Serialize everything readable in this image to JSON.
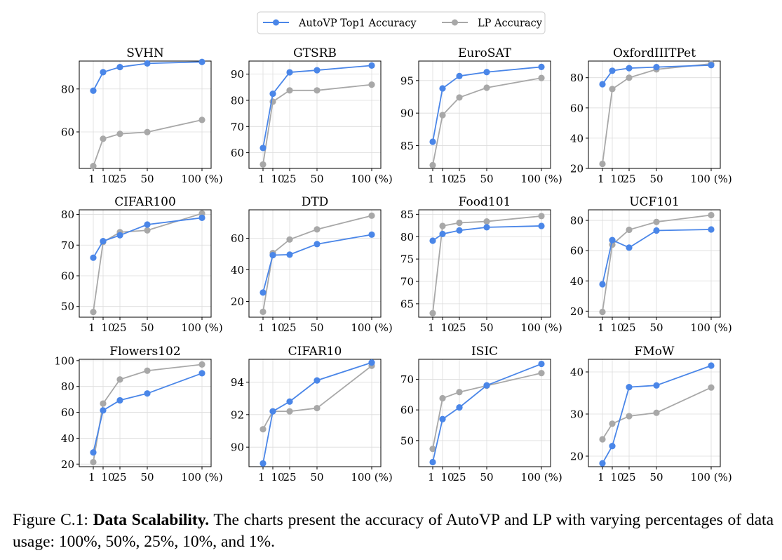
{
  "legend": {
    "items": [
      {
        "label": "AutoVP Top1 Accuracy",
        "color": "#4a86e8"
      },
      {
        "label": "LP Accuracy",
        "color": "#a8a8a8"
      }
    ],
    "placement": "top-center"
  },
  "colors": {
    "autovp": "#4a86e8",
    "lp": "#a8a8a8",
    "grid": "#dcdcdc",
    "axis": "#000000"
  },
  "caption": {
    "label": "Figure C.1:",
    "bold": "Data Scalability.",
    "text": "The charts present the accuracy of AutoVP and LP with varying percentages of data usage: 100%, 50%, 25%, 10%, and 1%."
  },
  "chart_data": [
    {
      "type": "line",
      "title": "SVHN",
      "x": [
        1,
        10,
        25,
        50,
        100
      ],
      "x_tick_labels": [
        "1",
        "10",
        "25",
        "50",
        "100 (%)"
      ],
      "ylim": [
        43,
        93
      ],
      "y_ticks": [
        60,
        80
      ],
      "grid": true,
      "series": [
        {
          "name": "AutoVP Top1 Accuracy",
          "values": [
            79.2,
            87.8,
            90.2,
            91.9,
            92.6
          ]
        },
        {
          "name": "LP Accuracy",
          "values": [
            44.1,
            56.8,
            59.1,
            59.9,
            65.6
          ]
        }
      ]
    },
    {
      "type": "line",
      "title": "GTSRB",
      "x": [
        1,
        10,
        25,
        50,
        100
      ],
      "x_tick_labels": [
        "1",
        "10",
        "25",
        "50",
        "100 (%)"
      ],
      "ylim": [
        54,
        95
      ],
      "y_ticks": [
        60,
        70,
        80,
        90
      ],
      "grid": true,
      "series": [
        {
          "name": "AutoVP Top1 Accuracy",
          "values": [
            61.8,
            82.5,
            90.7,
            91.5,
            93.3
          ]
        },
        {
          "name": "LP Accuracy",
          "values": [
            55.5,
            79.5,
            83.8,
            83.8,
            86.0
          ]
        }
      ]
    },
    {
      "type": "line",
      "title": "EuroSAT",
      "x": [
        1,
        10,
        25,
        50,
        100
      ],
      "x_tick_labels": [
        "1",
        "10",
        "25",
        "50",
        "100 (%)"
      ],
      "ylim": [
        81.5,
        98
      ],
      "y_ticks": [
        85,
        90,
        95
      ],
      "grid": true,
      "series": [
        {
          "name": "AutoVP Top1 Accuracy",
          "values": [
            85.6,
            93.8,
            95.7,
            96.3,
            97.1
          ]
        },
        {
          "name": "LP Accuracy",
          "values": [
            82.0,
            89.7,
            92.4,
            93.9,
            95.4
          ]
        }
      ]
    },
    {
      "type": "line",
      "title": "OxfordIIITPet",
      "x": [
        1,
        10,
        25,
        50,
        100
      ],
      "x_tick_labels": [
        "1",
        "10",
        "25",
        "50",
        "100 (%)"
      ],
      "ylim": [
        20,
        91
      ],
      "y_ticks": [
        20,
        40,
        60,
        80
      ],
      "grid": true,
      "series": [
        {
          "name": "AutoVP Top1 Accuracy",
          "values": [
            75.7,
            84.6,
            86.3,
            87.0,
            88.3
          ]
        },
        {
          "name": "LP Accuracy",
          "values": [
            23.0,
            72.5,
            80.0,
            85.5,
            89.2
          ]
        }
      ]
    },
    {
      "type": "line",
      "title": "CIFAR100",
      "x": [
        1,
        10,
        25,
        50,
        100
      ],
      "x_tick_labels": [
        "1",
        "10",
        "25",
        "50",
        "100 (%)"
      ],
      "ylim": [
        46.5,
        81.5
      ],
      "y_ticks": [
        50,
        60,
        70,
        80
      ],
      "grid": true,
      "series": [
        {
          "name": "AutoVP Top1 Accuracy",
          "values": [
            65.9,
            71.3,
            73.2,
            76.7,
            78.9
          ]
        },
        {
          "name": "LP Accuracy",
          "values": [
            48.2,
            71.0,
            74.2,
            74.8,
            80.3
          ]
        }
      ]
    },
    {
      "type": "line",
      "title": "DTD",
      "x": [
        1,
        10,
        25,
        50,
        100
      ],
      "x_tick_labels": [
        "1",
        "10",
        "25",
        "50",
        "100 (%)"
      ],
      "ylim": [
        10,
        78
      ],
      "y_ticks": [
        20,
        40,
        60
      ],
      "grid": true,
      "series": [
        {
          "name": "AutoVP Top1 Accuracy",
          "values": [
            25.6,
            49.3,
            49.6,
            56.3,
            62.3
          ]
        },
        {
          "name": "LP Accuracy",
          "values": [
            13.4,
            50.6,
            59.2,
            65.6,
            74.3
          ]
        }
      ]
    },
    {
      "type": "line",
      "title": "Food101",
      "x": [
        1,
        10,
        25,
        50,
        100
      ],
      "x_tick_labels": [
        "1",
        "10",
        "25",
        "50",
        "100 (%)"
      ],
      "ylim": [
        62,
        86
      ],
      "y_ticks": [
        65,
        70,
        75,
        80,
        85
      ],
      "grid": true,
      "series": [
        {
          "name": "AutoVP Top1 Accuracy",
          "values": [
            79.1,
            80.6,
            81.4,
            82.1,
            82.4
          ]
        },
        {
          "name": "LP Accuracy",
          "values": [
            62.9,
            82.4,
            83.1,
            83.4,
            84.6
          ]
        }
      ]
    },
    {
      "type": "line",
      "title": "UCF101",
      "x": [
        1,
        10,
        25,
        50,
        100
      ],
      "x_tick_labels": [
        "1",
        "10",
        "25",
        "50",
        "100 (%)"
      ],
      "ylim": [
        16,
        87
      ],
      "y_ticks": [
        20,
        40,
        60,
        80
      ],
      "grid": true,
      "series": [
        {
          "name": "AutoVP Top1 Accuracy",
          "values": [
            37.8,
            67.0,
            62.0,
            73.3,
            74.0
          ]
        },
        {
          "name": "LP Accuracy",
          "values": [
            19.5,
            64.0,
            73.8,
            79.0,
            83.5
          ]
        }
      ]
    },
    {
      "type": "line",
      "title": "Flowers102",
      "x": [
        1,
        10,
        25,
        50,
        100
      ],
      "x_tick_labels": [
        "1",
        "10",
        "25",
        "50",
        "100 (%)"
      ],
      "ylim": [
        18,
        101
      ],
      "y_ticks": [
        20,
        40,
        60,
        80,
        100
      ],
      "grid": true,
      "series": [
        {
          "name": "AutoVP Top1 Accuracy",
          "values": [
            29.0,
            61.5,
            69.3,
            74.6,
            90.2
          ]
        },
        {
          "name": "LP Accuracy",
          "values": [
            21.5,
            66.8,
            85.4,
            92.2,
            97.0
          ]
        }
      ]
    },
    {
      "type": "line",
      "title": "CIFAR10",
      "x": [
        1,
        10,
        25,
        50,
        100
      ],
      "x_tick_labels": [
        "1",
        "10",
        "25",
        "50",
        "100 (%)"
      ],
      "ylim": [
        88.8,
        95.4
      ],
      "y_ticks": [
        90,
        92,
        94
      ],
      "grid": true,
      "series": [
        {
          "name": "AutoVP Top1 Accuracy",
          "values": [
            89.0,
            92.2,
            92.8,
            94.1,
            95.2
          ]
        },
        {
          "name": "LP Accuracy",
          "values": [
            91.1,
            92.2,
            92.2,
            92.4,
            95.0
          ]
        }
      ]
    },
    {
      "type": "line",
      "title": "ISIC",
      "x": [
        1,
        10,
        25,
        50,
        100
      ],
      "x_tick_labels": [
        "1",
        "10",
        "25",
        "50",
        "100 (%)"
      ],
      "ylim": [
        41.5,
        76.5
      ],
      "y_ticks": [
        50,
        60,
        70
      ],
      "grid": true,
      "series": [
        {
          "name": "AutoVP Top1 Accuracy",
          "values": [
            43.0,
            57.0,
            60.8,
            68.0,
            75.0
          ]
        },
        {
          "name": "LP Accuracy",
          "values": [
            47.3,
            63.8,
            65.8,
            67.9,
            72.0
          ]
        }
      ]
    },
    {
      "type": "line",
      "title": "FMoW",
      "x": [
        1,
        10,
        25,
        50,
        100
      ],
      "x_tick_labels": [
        "1",
        "10",
        "25",
        "50",
        "100 (%)"
      ],
      "ylim": [
        17.5,
        43
      ],
      "y_ticks": [
        20,
        30,
        40
      ],
      "grid": true,
      "series": [
        {
          "name": "AutoVP Top1 Accuracy",
          "values": [
            18.3,
            22.4,
            36.4,
            36.8,
            41.5
          ]
        },
        {
          "name": "LP Accuracy",
          "values": [
            24.0,
            27.7,
            29.5,
            30.3,
            36.3
          ]
        }
      ]
    }
  ]
}
